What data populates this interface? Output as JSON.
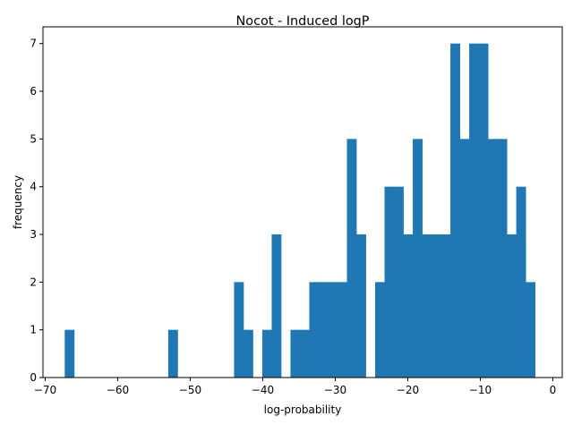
{
  "chart_data": {
    "type": "bar",
    "subtype": "histogram",
    "title": "Nocot - Induced logP",
    "xlabel": "log-probability",
    "ylabel": "frequency",
    "bar_color": "#1f77b4",
    "grid": false,
    "legend": "none",
    "xlim": [
      -70.3,
      1.3
    ],
    "ylim": [
      0,
      7.35
    ],
    "bin_start": -67.3,
    "bin_width": 1.297,
    "counts": [
      1,
      0,
      0,
      0,
      0,
      0,
      0,
      0,
      0,
      0,
      0,
      1,
      0,
      0,
      0,
      0,
      0,
      0,
      2,
      1,
      0,
      1,
      3,
      0,
      1,
      1,
      2,
      2,
      2,
      2,
      5,
      3,
      0,
      2,
      4,
      4,
      3,
      5,
      3,
      3,
      3,
      7,
      5,
      7,
      7,
      5,
      5,
      3,
      4,
      2
    ],
    "xticks": [
      -70,
      -60,
      -50,
      -40,
      -30,
      -20,
      -10,
      0
    ],
    "xtick_labels": [
      "−70",
      "−60",
      "−50",
      "−40",
      "−30",
      "−20",
      "−10",
      "0"
    ],
    "yticks": [
      0,
      1,
      2,
      3,
      4,
      5,
      6,
      7
    ],
    "ytick_labels": [
      "0",
      "1",
      "2",
      "3",
      "4",
      "5",
      "6",
      "7"
    ]
  }
}
